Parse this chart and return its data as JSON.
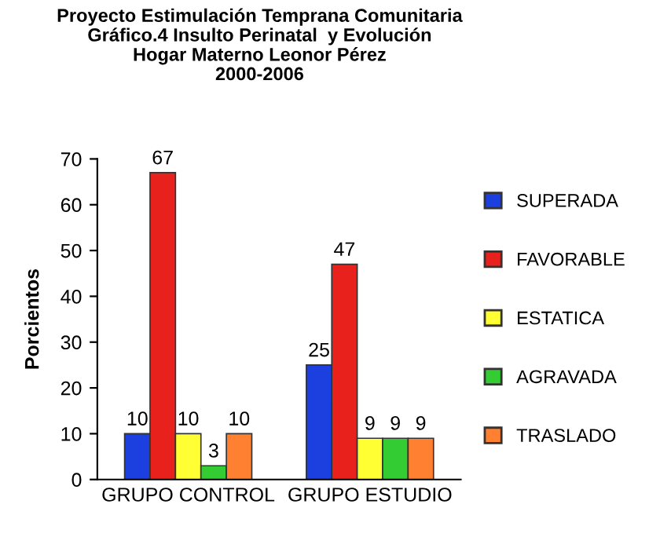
{
  "chart_data": {
    "type": "bar",
    "title": "Proyecto Estimulación Temprana Comunitaria\nGráfico.4 Insulto Perinatal  y Evolución\nHogar Materno Leonor Pérez\n2000-2006",
    "ylabel": "Porcientos",
    "categories": [
      "GRUPO CONTROL",
      "GRUPO ESTUDIO"
    ],
    "series": [
      {
        "name": "SUPERADA",
        "color": "#1c3fe0",
        "values": [
          10,
          25
        ]
      },
      {
        "name": "FAVORABLE",
        "color": "#e8211c",
        "values": [
          67,
          47
        ]
      },
      {
        "name": "ESTATICA",
        "color": "#ffff33",
        "values": [
          10,
          9
        ]
      },
      {
        "name": "AGRAVADA",
        "color": "#33cc33",
        "values": [
          3,
          9
        ]
      },
      {
        "name": "TRASLADO",
        "color": "#ff8030",
        "values": [
          10,
          9
        ]
      }
    ],
    "ylim": [
      0,
      70
    ],
    "yticks": [
      0,
      10,
      20,
      30,
      40,
      50,
      60,
      70
    ],
    "data_labels": true,
    "legend": "right",
    "grid": false
  }
}
